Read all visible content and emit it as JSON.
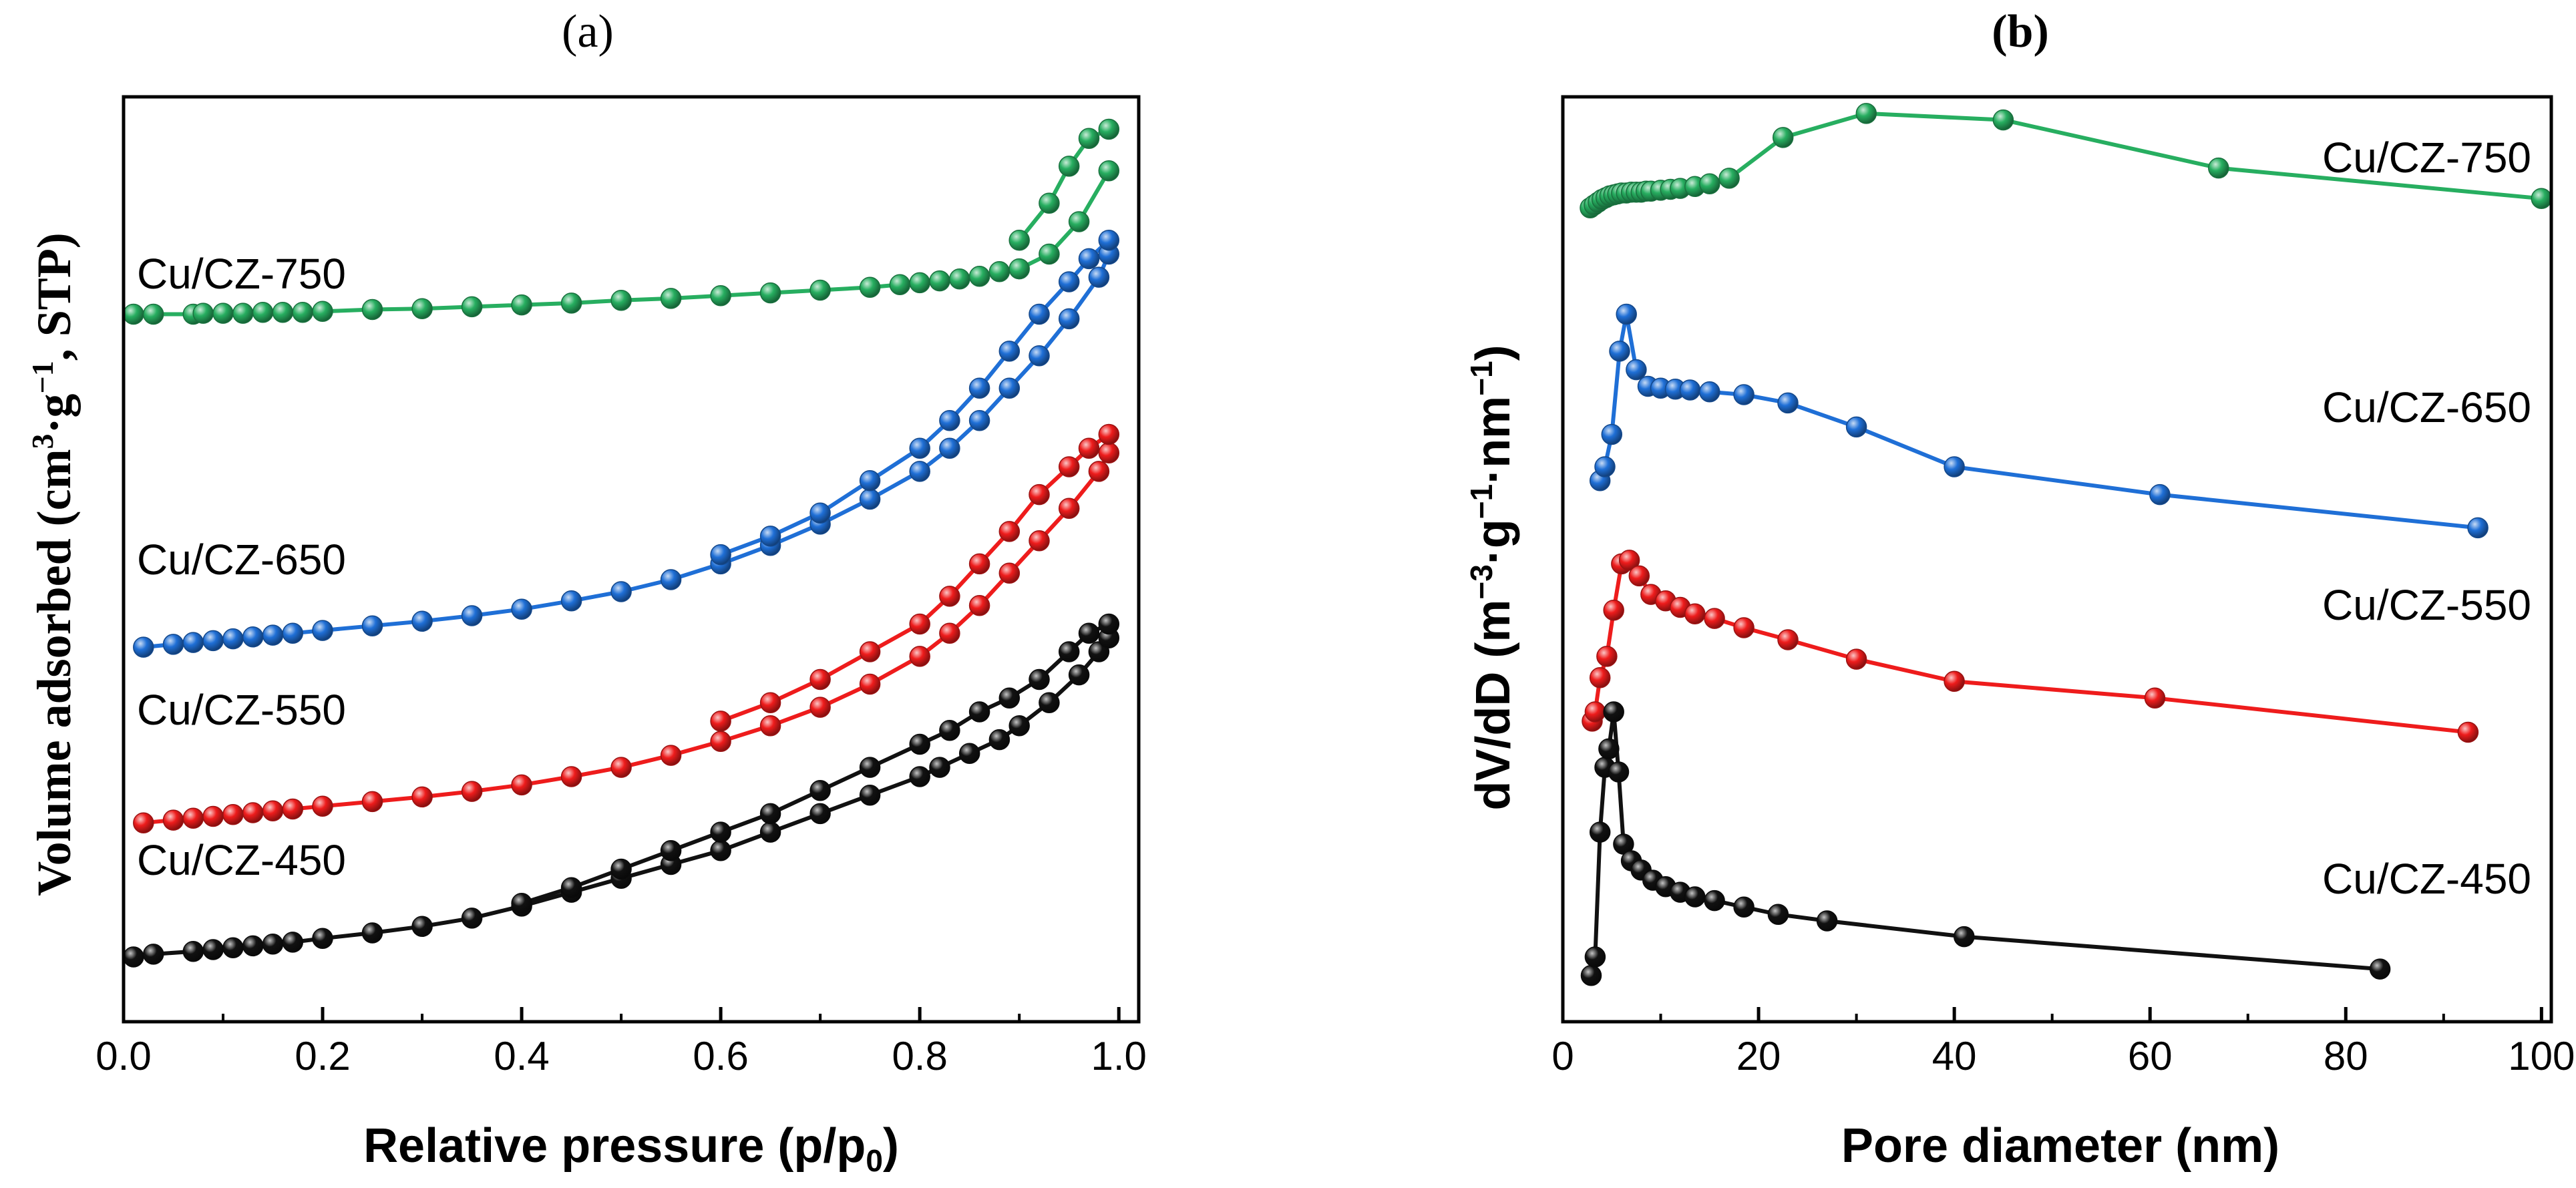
{
  "chart_data": [
    {
      "type": "line",
      "panel_label": "(a)",
      "title": "",
      "xlabel": "Relative pressure (p/p₀)",
      "xlabel_main": "Relative pressure (p/p",
      "xlabel_sub": "0",
      "xlabel_end": ")",
      "ylabel": "Volume adsorbed (cm³·g⁻¹, STP)",
      "ylabel_main": "Volume adsorbed (cm",
      "ylabel_sup1": "3",
      "ylabel_mid": "·g",
      "ylabel_sup2": "−1",
      "ylabel_end": ", STP)",
      "xlim": [
        0.0,
        1.02
      ],
      "ylim": [
        0,
        100
      ],
      "xticks": [
        0.0,
        0.2,
        0.4,
        0.6,
        0.8,
        1.0
      ],
      "xtick_labels": [
        "0.0",
        "0.2",
        "0.4",
        "0.6",
        "0.8",
        "1.0"
      ],
      "yticks": [],
      "legend": "inline labels left of curves",
      "series": [
        {
          "name": "Cu/CZ-750",
          "color": "#27ae60",
          "adsorption": {
            "x": [
              0.01,
              0.03,
              0.07,
              0.08,
              0.1,
              0.12,
              0.14,
              0.16,
              0.18,
              0.2,
              0.25,
              0.3,
              0.35,
              0.4,
              0.45,
              0.5,
              0.55,
              0.6,
              0.65,
              0.7,
              0.75,
              0.78,
              0.8,
              0.82,
              0.84,
              0.86,
              0.88,
              0.9,
              0.93,
              0.96,
              0.99
            ],
            "y": [
              76.5,
              76.5,
              76.5,
              76.6,
              76.6,
              76.6,
              76.7,
              76.7,
              76.7,
              76.8,
              77.0,
              77.1,
              77.3,
              77.5,
              77.7,
              78.0,
              78.2,
              78.5,
              78.8,
              79.1,
              79.4,
              79.7,
              79.9,
              80.1,
              80.3,
              80.6,
              81.1,
              81.4,
              83.0,
              86.5,
              92.0
            ]
          },
          "desorption": {
            "x": [
              0.99,
              0.97,
              0.95,
              0.93,
              0.9
            ],
            "y": [
              96.5,
              95.5,
              92.5,
              88.5,
              84.5
            ]
          }
        },
        {
          "name": "Cu/CZ-650",
          "color": "#1f6fd6",
          "adsorption": {
            "x": [
              0.02,
              0.05,
              0.07,
              0.09,
              0.11,
              0.13,
              0.15,
              0.17,
              0.2,
              0.25,
              0.3,
              0.35,
              0.4,
              0.45,
              0.5,
              0.55,
              0.6,
              0.65,
              0.7,
              0.75,
              0.8,
              0.83,
              0.86,
              0.89,
              0.92,
              0.95,
              0.98,
              0.99
            ],
            "y": [
              40.5,
              40.8,
              41.0,
              41.2,
              41.4,
              41.6,
              41.8,
              42.0,
              42.3,
              42.8,
              43.3,
              43.9,
              44.6,
              45.5,
              46.5,
              47.8,
              49.5,
              51.5,
              53.8,
              56.5,
              59.5,
              62.0,
              65.0,
              68.5,
              72.0,
              76.0,
              80.5,
              83.0
            ]
          },
          "desorption": {
            "x": [
              0.99,
              0.97,
              0.95,
              0.92,
              0.89,
              0.86,
              0.83,
              0.8,
              0.75,
              0.7,
              0.65,
              0.6
            ],
            "y": [
              84.5,
              82.5,
              80.0,
              76.5,
              72.5,
              68.5,
              65.0,
              62.0,
              58.5,
              55.0,
              52.5,
              50.5
            ]
          }
        },
        {
          "name": "Cu/CZ-550",
          "color": "#ee1c1c",
          "adsorption": {
            "x": [
              0.02,
              0.05,
              0.07,
              0.09,
              0.11,
              0.13,
              0.15,
              0.17,
              0.2,
              0.25,
              0.3,
              0.35,
              0.4,
              0.45,
              0.5,
              0.55,
              0.6,
              0.65,
              0.7,
              0.75,
              0.8,
              0.83,
              0.86,
              0.89,
              0.92,
              0.95,
              0.98,
              0.99
            ],
            "y": [
              21.5,
              21.8,
              22.0,
              22.2,
              22.4,
              22.6,
              22.8,
              23.0,
              23.3,
              23.8,
              24.3,
              24.9,
              25.6,
              26.5,
              27.5,
              28.8,
              30.3,
              32.0,
              34.0,
              36.5,
              39.5,
              42.0,
              45.0,
              48.5,
              52.0,
              55.5,
              59.5,
              61.5
            ]
          },
          "desorption": {
            "x": [
              0.99,
              0.97,
              0.95,
              0.92,
              0.89,
              0.86,
              0.83,
              0.8,
              0.75,
              0.7,
              0.65,
              0.6
            ],
            "y": [
              63.5,
              62.0,
              60.0,
              57.0,
              53.0,
              49.5,
              46.0,
              43.0,
              40.0,
              37.0,
              34.5,
              32.5
            ]
          }
        },
        {
          "name": "Cu/CZ-450",
          "color": "#111111",
          "adsorption": {
            "x": [
              0.01,
              0.03,
              0.07,
              0.09,
              0.11,
              0.13,
              0.15,
              0.17,
              0.2,
              0.25,
              0.3,
              0.35,
              0.4,
              0.45,
              0.5,
              0.55,
              0.6,
              0.65,
              0.7,
              0.75,
              0.8,
              0.82,
              0.85,
              0.88,
              0.9,
              0.93,
              0.96,
              0.98,
              0.99
            ],
            "y": [
              7.0,
              7.3,
              7.6,
              7.8,
              8.0,
              8.2,
              8.4,
              8.6,
              9.0,
              9.6,
              10.3,
              11.2,
              12.5,
              14.0,
              15.5,
              17.0,
              18.5,
              20.5,
              22.5,
              24.5,
              26.5,
              27.5,
              29.0,
              30.5,
              32.0,
              34.5,
              37.5,
              40.0,
              41.5
            ]
          },
          "desorption": {
            "x": [
              0.99,
              0.97,
              0.95,
              0.92,
              0.89,
              0.86,
              0.83,
              0.8,
              0.75,
              0.7,
              0.65,
              0.6,
              0.55,
              0.5,
              0.45,
              0.4
            ],
            "y": [
              43.0,
              42.0,
              40.0,
              37.0,
              35.0,
              33.5,
              31.5,
              30.0,
              27.5,
              25.0,
              22.5,
              20.5,
              18.5,
              16.5,
              14.5,
              12.8
            ]
          }
        }
      ]
    },
    {
      "type": "line",
      "panel_label": "(b)",
      "title": "",
      "xlabel": "Pore diameter (nm)",
      "ylabel": "dV/dD (m⁻³·g⁻¹·nm⁻¹)",
      "ylabel_main": "dV/dD (m",
      "ylabel_sup1": "−3",
      "ylabel_mid": "·g",
      "ylabel_sup2": "−1",
      "ylabel_mid2": "·nm",
      "ylabel_sup3": "−1",
      "ylabel_end": ")",
      "xlim": [
        0,
        101
      ],
      "ylim": [
        0,
        100
      ],
      "xticks": [
        0,
        20,
        40,
        60,
        80,
        100
      ],
      "xtick_labels": [
        "0",
        "20",
        "40",
        "60",
        "80",
        "100"
      ],
      "yticks": [],
      "legend": "inline labels right of curves",
      "series": [
        {
          "name": "Cu/CZ-750",
          "color": "#27ae60",
          "x": [
            2.8,
            3.2,
            3.6,
            4.0,
            4.4,
            4.8,
            5.2,
            5.6,
            6.0,
            6.5,
            7.0,
            7.5,
            8.0,
            8.5,
            9.0,
            10.0,
            11.0,
            12.0,
            13.5,
            15.0,
            17.0,
            22.5,
            31.0,
            45.0,
            67.0,
            100.0
          ],
          "y": [
            88.0,
            88.3,
            88.6,
            88.9,
            89.1,
            89.3,
            89.4,
            89.5,
            89.6,
            89.6,
            89.7,
            89.7,
            89.7,
            89.8,
            89.8,
            89.9,
            90.0,
            90.1,
            90.3,
            90.6,
            91.2,
            95.6,
            98.2,
            97.5,
            92.3,
            89.0
          ]
        },
        {
          "name": "Cu/CZ-650",
          "color": "#1f6fd6",
          "x": [
            3.8,
            4.3,
            5.0,
            5.8,
            6.5,
            7.5,
            8.7,
            10.0,
            11.5,
            13.0,
            15.0,
            18.5,
            23.0,
            30.0,
            40.0,
            61.0,
            93.5
          ],
          "y": [
            58.5,
            60.0,
            63.5,
            72.5,
            76.5,
            70.5,
            68.7,
            68.5,
            68.4,
            68.3,
            68.1,
            67.8,
            66.9,
            64.3,
            60.0,
            57.0,
            53.4
          ]
        },
        {
          "name": "Cu/CZ-550",
          "color": "#ee1c1c",
          "x": [
            3.0,
            3.3,
            3.8,
            4.5,
            5.2,
            6.0,
            6.8,
            7.8,
            9.0,
            10.5,
            12.0,
            13.5,
            15.5,
            18.5,
            23.0,
            30.0,
            40.0,
            60.5,
            92.5
          ],
          "y": [
            32.5,
            33.5,
            37.2,
            39.5,
            44.5,
            49.5,
            49.9,
            48.2,
            46.2,
            45.5,
            44.8,
            44.1,
            43.6,
            42.6,
            41.3,
            39.2,
            36.8,
            35.0,
            31.3
          ]
        },
        {
          "name": "Cu/CZ-450",
          "color": "#111111",
          "x": [
            2.9,
            3.3,
            3.8,
            4.3,
            4.7,
            5.2,
            5.7,
            6.2,
            7.0,
            8.0,
            9.2,
            10.5,
            12.0,
            13.5,
            15.5,
            18.5,
            22.0,
            27.0,
            41.0,
            83.5
          ],
          "y": [
            5.0,
            7.0,
            20.5,
            27.5,
            29.5,
            33.5,
            27.0,
            19.2,
            17.4,
            16.4,
            15.3,
            14.6,
            14.0,
            13.5,
            13.1,
            12.4,
            11.6,
            10.9,
            9.2,
            5.7
          ]
        }
      ]
    }
  ]
}
